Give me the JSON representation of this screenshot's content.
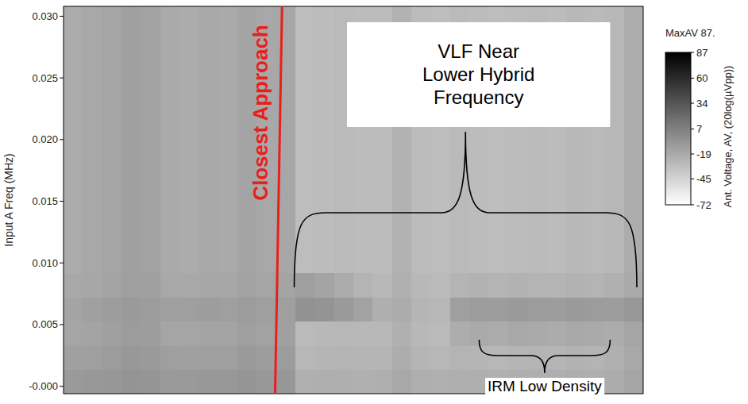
{
  "chart_data": {
    "type": "heatmap",
    "y_label": "Input A Freq (MHz)",
    "ylim": [
      -0.0006,
      0.0308
    ],
    "yticks": [
      {
        "value": 0,
        "label": "-0.000"
      },
      0.005,
      {
        "value": 0.01,
        "label": "0.010"
      },
      0.015,
      {
        "value": 0.02,
        "label": "0.020"
      },
      0.025,
      {
        "value": 0.03,
        "label": "0.030"
      }
    ],
    "tick_labels": "y",
    "cells": [
      [
        -9,
        -8,
        -7,
        -5,
        -6,
        -9,
        -9,
        -8,
        -8,
        -6,
        -8,
        -7,
        -23,
        -22,
        -22,
        -23,
        -22,
        -18,
        -22,
        -23,
        -22,
        -22,
        -23,
        -22,
        -22,
        -22,
        -21,
        -22,
        -20,
        -16
      ],
      [
        -13,
        -12,
        -10,
        -8,
        -9,
        -12,
        -13,
        -12,
        -12,
        -9,
        -11,
        -10,
        -27,
        -26,
        -25,
        -26,
        -26,
        -21,
        -26,
        -27,
        -25,
        -26,
        -27,
        -26,
        -25,
        -26,
        -24,
        -25,
        -23,
        -18
      ],
      [
        -16,
        -15,
        -13,
        -10,
        -11,
        -16,
        -16,
        -15,
        -15,
        -12,
        -14,
        -13,
        -29,
        -28,
        -27,
        -28,
        -28,
        -23,
        -28,
        -29,
        -21,
        -19,
        -20,
        -18,
        -19,
        -20,
        -18,
        -19,
        -20,
        -16
      ],
      [
        -15,
        -13,
        -11,
        -9,
        -10,
        -13,
        -12,
        -11,
        -12,
        -10,
        -12,
        -12,
        -4,
        -5,
        -9,
        -14,
        -22,
        -20,
        -26,
        -27,
        -12,
        -10,
        -11,
        -9,
        -10,
        -11,
        -9,
        -10,
        -11,
        -8
      ],
      [
        -18,
        -17,
        -15,
        -12,
        -13,
        -18,
        -18,
        -17,
        -17,
        -14,
        -16,
        -15,
        -12,
        -15,
        -20,
        -25,
        -28,
        -23,
        -28,
        -29,
        -25,
        -24,
        -25,
        -24,
        -25,
        -25,
        -24,
        -25,
        -23,
        -19
      ],
      [
        -20,
        -18,
        -16,
        -13,
        -14,
        -19,
        -20,
        -18,
        -19,
        -15,
        -18,
        -17,
        -31,
        -30,
        -29,
        -30,
        -30,
        -24,
        -30,
        -31,
        -29,
        -30,
        -31,
        -30,
        -29,
        -30,
        -28,
        -29,
        -27,
        -21
      ],
      [
        -20,
        -18,
        -16,
        -13,
        -14,
        -19,
        -20,
        -18,
        -19,
        -15,
        -18,
        -17,
        -31,
        -30,
        -29,
        -30,
        -30,
        -24,
        -30,
        -31,
        -29,
        -30,
        -31,
        -30,
        -29,
        -30,
        -28,
        -29,
        -27,
        -21
      ],
      [
        -20,
        -18,
        -16,
        -13,
        -14,
        -19,
        -20,
        -18,
        -19,
        -15,
        -18,
        -17,
        -31,
        -30,
        -29,
        -30,
        -30,
        -24,
        -30,
        -31,
        -29,
        -30,
        -31,
        -30,
        -29,
        -30,
        -28,
        -29,
        -27,
        -21
      ],
      [
        -20,
        -18,
        -16,
        -13,
        -14,
        -19,
        -20,
        -18,
        -19,
        -15,
        -18,
        -17,
        -31,
        -30,
        -29,
        -30,
        -30,
        -24,
        -30,
        -31,
        -29,
        -30,
        -31,
        -30,
        -29,
        -30,
        -28,
        -29,
        -27,
        -21
      ],
      [
        -20,
        -18,
        -16,
        -13,
        -14,
        -19,
        -20,
        -18,
        -19,
        -15,
        -18,
        -17,
        -31,
        -30,
        -29,
        -30,
        -30,
        -24,
        -30,
        -31,
        -29,
        -30,
        -31,
        -30,
        -29,
        -30,
        -28,
        -29,
        -27,
        -21
      ],
      [
        -20,
        -18,
        -16,
        -13,
        -14,
        -19,
        -20,
        -18,
        -19,
        -15,
        -18,
        -17,
        -31,
        -30,
        -29,
        -30,
        -30,
        -24,
        -30,
        -31,
        -29,
        -30,
        -31,
        -30,
        -29,
        -30,
        -28,
        -29,
        -27,
        -21
      ],
      [
        -20,
        -18,
        -16,
        -13,
        -14,
        -19,
        -20,
        -18,
        -19,
        -15,
        -18,
        -17,
        -31,
        -30,
        -29,
        -30,
        -30,
        -24,
        -30,
        -31,
        -29,
        -30,
        -31,
        -30,
        -29,
        -30,
        -28,
        -29,
        -27,
        -21
      ],
      [
        -20,
        -18,
        -16,
        -13,
        -14,
        -19,
        -20,
        -18,
        -19,
        -15,
        -18,
        -17,
        -31,
        -30,
        -29,
        -30,
        -30,
        -24,
        -30,
        -31,
        -29,
        -30,
        -31,
        -30,
        -29,
        -30,
        -28,
        -29,
        -27,
        -21
      ],
      [
        -20,
        -18,
        -16,
        -13,
        -14,
        -19,
        -20,
        -18,
        -19,
        -15,
        -18,
        -17,
        -31,
        -30,
        -29,
        -30,
        -30,
        -24,
        -30,
        -31,
        -29,
        -30,
        -31,
        -30,
        -29,
        -30,
        -28,
        -29,
        -27,
        -21
      ],
      [
        -20,
        -18,
        -16,
        -13,
        -14,
        -19,
        -20,
        -18,
        -19,
        -15,
        -18,
        -17,
        -31,
        -30,
        -29,
        -30,
        -30,
        -24,
        -30,
        -31,
        -29,
        -30,
        -31,
        -30,
        -29,
        -30,
        -28,
        -29,
        -27,
        -21
      ],
      [
        -20,
        -18,
        -16,
        -13,
        -14,
        -19,
        -20,
        -18,
        -19,
        -15,
        -18,
        -17,
        -31,
        -30,
        -29,
        -30,
        -30,
        -24,
        -30,
        -31,
        -29,
        -30,
        -31,
        -30,
        -29,
        -30,
        -28,
        -29,
        -27,
        -21
      ]
    ],
    "colorbar": {
      "range": [
        -72,
        87
      ],
      "ticks": [
        87,
        60,
        34,
        7,
        -19,
        -45,
        -72
      ],
      "title": "Ant. Voltage, AV, (20log(µVpp))",
      "max_label": "MaxAV 87."
    },
    "annotations": [
      {
        "text": "Closest Approach"
      },
      {
        "text": "VLF Near Lower Hybrid Frequency"
      },
      {
        "text": "IRM Low Density"
      }
    ]
  }
}
